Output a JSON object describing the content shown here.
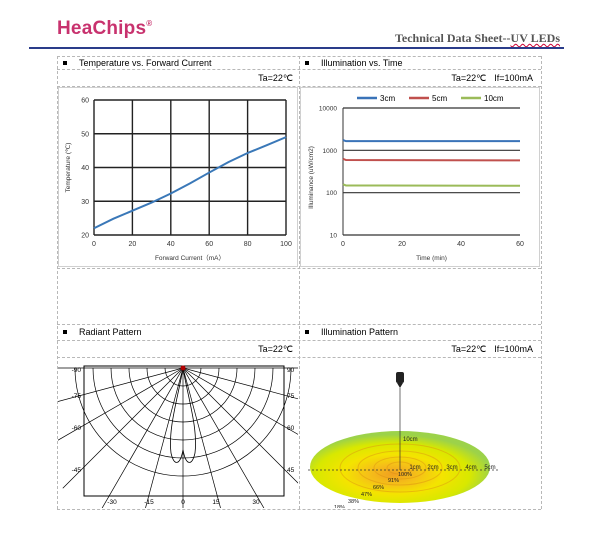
{
  "header": {
    "logo": "HeaChips",
    "logo_mark": "®",
    "doc_title_prefix": "Technical Data Sheet--",
    "doc_title_suffix": "UV LEDs",
    "brand_color": "#c8326e",
    "rule_color": "#2a3c8a"
  },
  "sections": {
    "temp": {
      "title": "Temperature vs. Forward Current",
      "cond": "Ta=22℃"
    },
    "illum_time": {
      "title": "Illumination vs. Time",
      "cond_ta": "Ta=22℃",
      "cond_if": "If=100mA"
    },
    "radiant": {
      "title": "Radiant Pattern",
      "cond": "Ta=22℃"
    },
    "illum_pattern": {
      "title": "Illumination Pattern",
      "cond_ta": "Ta=22℃",
      "cond_if": "If=100mA"
    }
  },
  "chart_data": [
    {
      "type": "line",
      "xlabel": "Forward Current（mA）",
      "ylabel": "Temperature (℃)",
      "xlim": [
        0,
        100
      ],
      "ylim": [
        20,
        60
      ],
      "xticks": [
        "0",
        "20",
        "40",
        "60",
        "80",
        "100"
      ],
      "yticks": [
        "20",
        "30",
        "40",
        "50",
        "60"
      ],
      "grid": true,
      "color": "#3a78b8",
      "x": [
        0,
        10,
        20,
        30,
        40,
        50,
        60,
        70,
        80,
        90,
        100
      ],
      "y": [
        22,
        24.8,
        27.2,
        29.6,
        32.3,
        35.3,
        38.5,
        41.6,
        44.3,
        46.6,
        49
      ]
    },
    {
      "type": "line",
      "xlabel": "Time  (min)",
      "ylabel": "Illuminance (uW/cm2)",
      "xlim": [
        0,
        60
      ],
      "ylim": [
        10,
        10000
      ],
      "log_y": true,
      "xticks": [
        "0",
        "20",
        "40",
        "60"
      ],
      "yticks": [
        "10",
        "100",
        "1000",
        "10000"
      ],
      "legend": "top",
      "series": [
        {
          "name": "3cm",
          "color": "#3a73b8",
          "x": [
            0,
            1,
            60
          ],
          "y": [
            1750,
            1650,
            1650
          ]
        },
        {
          "name": "5cm",
          "color": "#c0504d",
          "x": [
            0,
            1,
            60
          ],
          "y": [
            630,
            590,
            580
          ]
        },
        {
          "name": "10cm",
          "color": "#9bbb59",
          "x": [
            0,
            1,
            60
          ],
          "y": [
            158,
            148,
            146
          ]
        }
      ]
    },
    {
      "type": "polar",
      "left_ticks": [
        "-90",
        "-75",
        "-60",
        "-45"
      ],
      "right_ticks": [
        "90",
        "75",
        "60",
        "45"
      ],
      "bottom_ticks": [
        "-30",
        "-15",
        "0",
        "15",
        "30"
      ]
    },
    {
      "type": "illumination",
      "distance_label": "10cm",
      "radius_labels": [
        "1cm",
        "2cm",
        "3cm",
        "4cm",
        "5cm"
      ],
      "percent_labels": [
        "100%",
        "91%",
        "66%",
        "47%",
        "38%",
        "18%"
      ]
    }
  ]
}
